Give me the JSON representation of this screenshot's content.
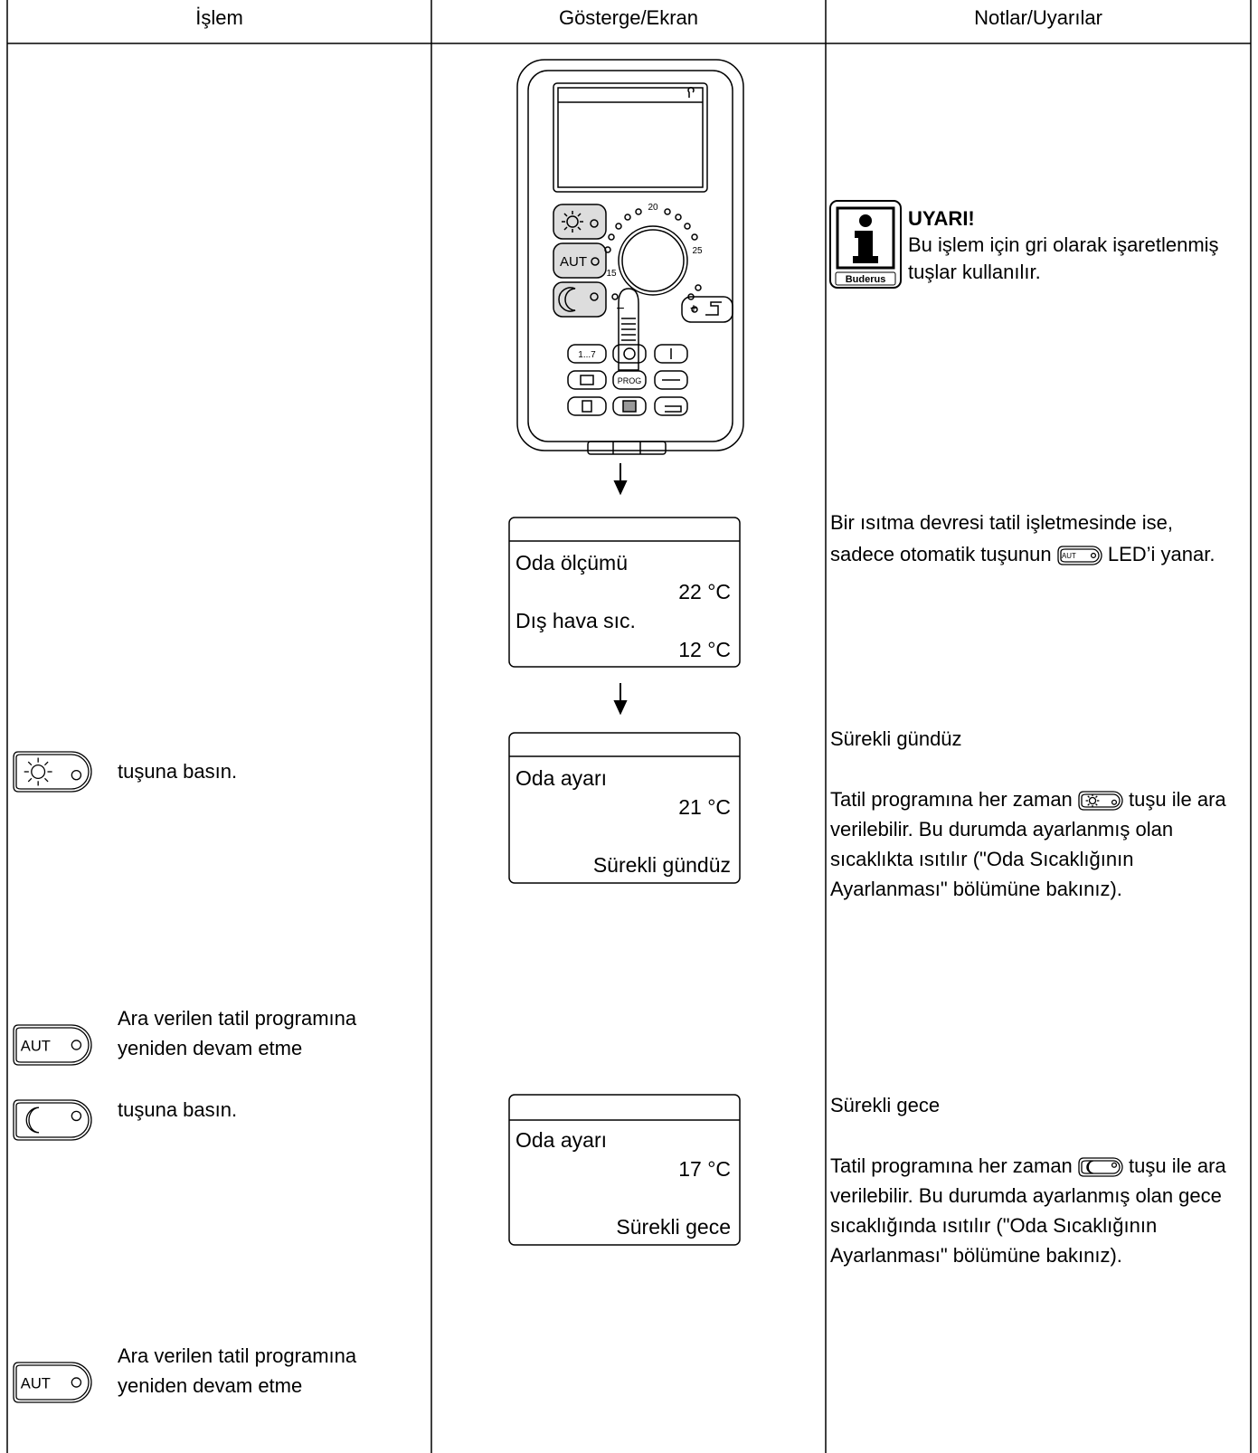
{
  "header": {
    "columns": [
      "İşlem",
      "Gösterge/Ekran",
      "Notlar/Uyarılar"
    ]
  },
  "device": {
    "dial_labels": [
      "20",
      "25",
      "15",
      "−",
      "+"
    ],
    "key_labels": [
      "1...7",
      "PROG"
    ]
  },
  "button_label": "AUT",
  "warning": {
    "title": "UYARI!",
    "text": "Bu işlem için gri olarak işaretlenmiş tuşlar kullanılır.",
    "logo": "Buderus"
  },
  "displays": [
    {
      "label": "Oda ölçümü",
      "value": "22 °C",
      "label2": "Dış hava sıc.",
      "value2": "12 °C"
    },
    {
      "label": "Oda ayarı",
      "value": "21 °C",
      "mode": "Sürekli gündüz"
    },
    {
      "label": "Oda ayarı",
      "value": "17 °C",
      "mode": "Sürekli gece"
    }
  ],
  "steps": [
    {
      "text": "tuşuna basın."
    },
    {
      "text": "Ara verilen tatil programına yeniden devam etme"
    },
    {
      "text": "tuşuna basın."
    },
    {
      "text": "Ara verilen tatil programına yeniden devam etme"
    }
  ],
  "notes": [
    {
      "before": "Bir ısıtma devresi tatil işletmesinde ise, sadece otomatik tuşunun",
      "after": "LED’i yanar."
    },
    {
      "title": "Sürekli gündüz",
      "before": "Tatil programına her zaman",
      "after": "tuşu ile ara verilebilir. Bu durumda ayarlanmış olan sıcaklıkta ısıtılır (\"Oda Sıcaklığının Ayarlanması\" bölümüne bakınız)."
    },
    {
      "title": "Sürekli gece",
      "before": "Tatil programına her zaman",
      "after": "tuşu ile ara verilebilir. Bu durumda ayarlanmış olan gece sıcaklığında ısıtılır (\"Oda Sıcaklığının Ayarlanması\" bölümüne bakınız)."
    }
  ]
}
